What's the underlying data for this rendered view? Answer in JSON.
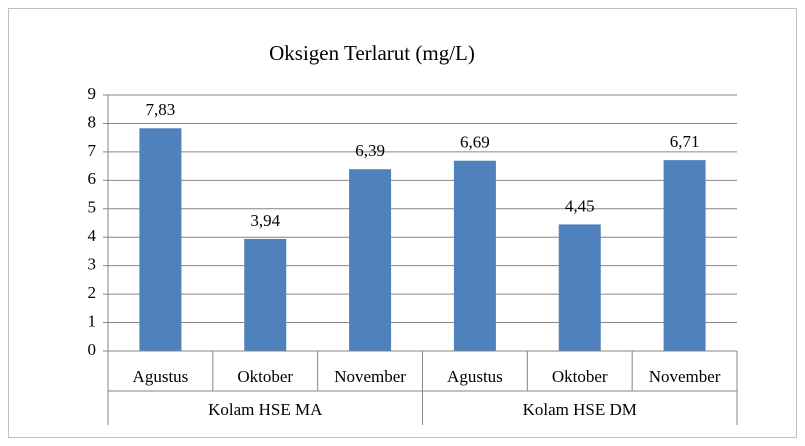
{
  "chart_data": {
    "type": "bar",
    "title": "Oksigen Terlarut (mg/L)",
    "groups": [
      {
        "name": "Kolam HSE MA",
        "categories": [
          "Agustus",
          "Oktober",
          "November"
        ],
        "values": [
          7.83,
          3.94,
          6.39
        ],
        "value_labels": [
          "7,83",
          "3,94",
          "6,39"
        ]
      },
      {
        "name": "Kolam HSE DM",
        "categories": [
          "Agustus",
          "Oktober",
          "November"
        ],
        "values": [
          6.69,
          4.45,
          6.71
        ],
        "value_labels": [
          "6,69",
          "4,45",
          "6,71"
        ]
      }
    ],
    "color": "#4f81bd",
    "ylim": [
      0,
      9
    ],
    "yticks": [
      0,
      1,
      2,
      3,
      4,
      5,
      6,
      7,
      8,
      9
    ],
    "grid": true
  }
}
